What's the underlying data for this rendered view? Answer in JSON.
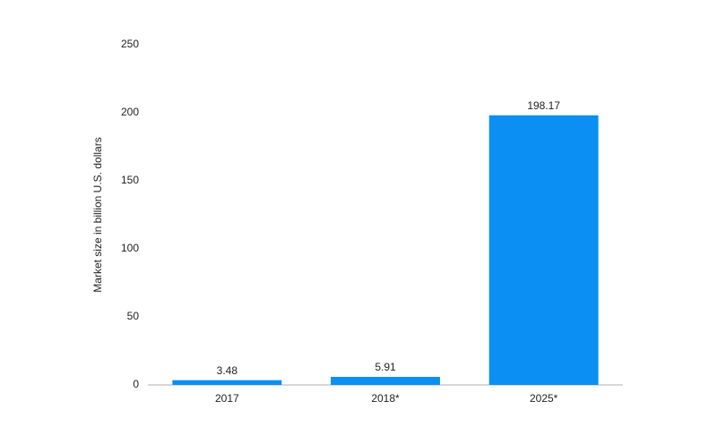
{
  "chart_data": {
    "type": "bar",
    "y_label": "Market size in billion U.S. dollars",
    "categories": [
      "2017",
      "2018*",
      "2025*"
    ],
    "values": [
      3.48,
      5.91,
      198.17
    ],
    "color": "#0b8ff2",
    "ylim": [
      0,
      250
    ],
    "yticks": [
      0,
      50,
      100,
      150,
      200,
      250
    ],
    "grid": false
  }
}
